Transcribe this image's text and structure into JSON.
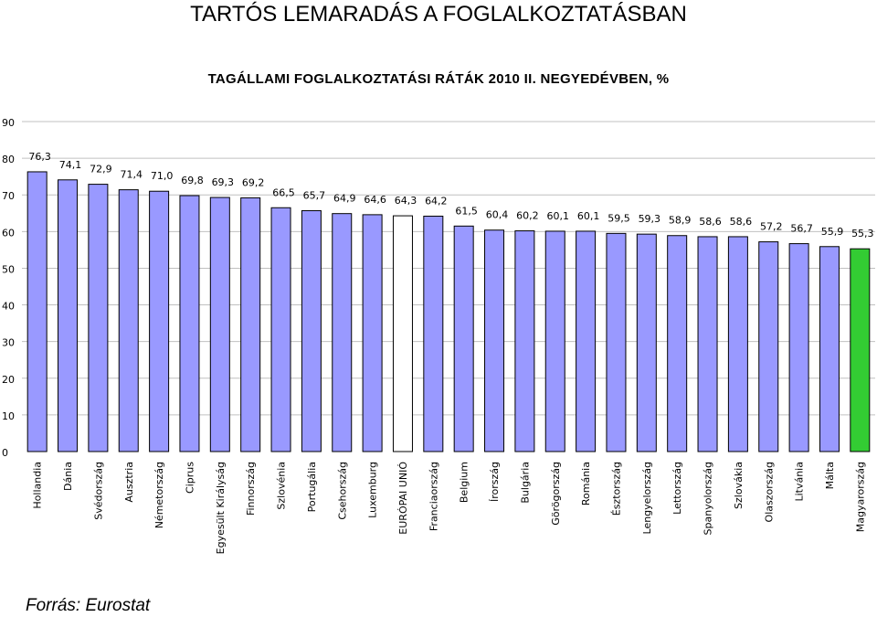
{
  "title": "TARTÓS LEMARADÁS A FOGLALKOZTATÁSBAN",
  "subtitle": "TAGÁLLAMI FOGLALKOZTATÁSI RÁTÁK 2010 II. NEGYEDÉVBEN, %",
  "source": "Forrás: Eurostat",
  "colors": {
    "default": "#9999ff",
    "eu": "#ffffff",
    "highlight": "#33cc33",
    "grid": "#c0c0c0"
  },
  "chart_data": {
    "type": "bar",
    "ylim": [
      0,
      90
    ],
    "yticks": [
      0,
      10,
      20,
      30,
      40,
      50,
      60,
      70,
      80,
      90
    ],
    "grid": true,
    "categories": [
      "Hollandia",
      "Dánia",
      "Svédország",
      "Ausztria",
      "Németország",
      "Ciprus",
      "Egyesült Királyság",
      "Finnország",
      "Szlovénia",
      "Portugália",
      "Csehország",
      "Luxemburg",
      "EURÓPAI UNIÓ",
      "Franciaország",
      "Belgium",
      "Írország",
      "Bulgária",
      "Görögország",
      "Románia",
      "Észtország",
      "Lengyelország",
      "Lettország",
      "Spanyolország",
      "Szlovákia",
      "Olaszország",
      "Litvánia",
      "Málta",
      "Magyarország"
    ],
    "values": [
      76.3,
      74.1,
      72.9,
      71.4,
      71.0,
      69.8,
      69.3,
      69.2,
      66.5,
      65.7,
      64.9,
      64.6,
      64.3,
      64.2,
      61.5,
      60.4,
      60.2,
      60.1,
      60.1,
      59.5,
      59.3,
      58.9,
      58.6,
      58.6,
      57.2,
      56.7,
      55.9,
      55.3
    ],
    "value_labels": [
      "76,3",
      "74,1",
      "72,9",
      "71,4",
      "71,0",
      "69,8",
      "69,3",
      "69,2",
      "66,5",
      "65,7",
      "64,9",
      "64,6",
      "64,3",
      "64,2",
      "61,5",
      "60,4",
      "60,2",
      "60,1",
      "60,1",
      "59,5",
      "59,3",
      "58,9",
      "58,6",
      "58,6",
      "57,2",
      "56,7",
      "55,9",
      "55,3"
    ],
    "bar_colors": [
      "default",
      "default",
      "default",
      "default",
      "default",
      "default",
      "default",
      "default",
      "default",
      "default",
      "default",
      "default",
      "eu",
      "default",
      "default",
      "default",
      "default",
      "default",
      "default",
      "default",
      "default",
      "default",
      "default",
      "default",
      "default",
      "default",
      "default",
      "highlight"
    ]
  }
}
